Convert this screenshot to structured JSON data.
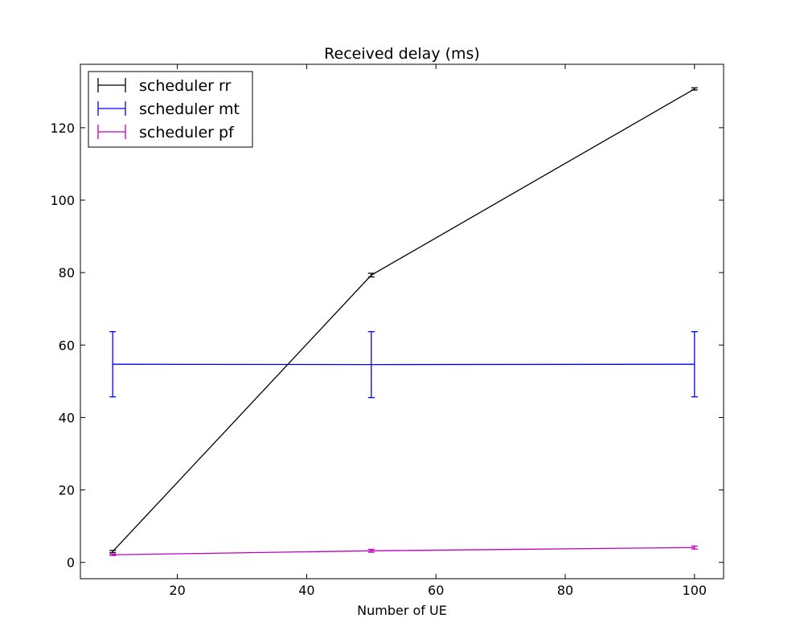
{
  "chart_data": {
    "type": "line",
    "title": "Received delay (ms)",
    "xlabel": "Number of UE",
    "ylabel": "",
    "xlim": [
      5,
      104.5
    ],
    "ylim": [
      -4.5,
      137.5
    ],
    "xticks": [
      20,
      40,
      60,
      80,
      100
    ],
    "yticks": [
      0,
      20,
      40,
      60,
      80,
      100,
      120
    ],
    "x": [
      10,
      50,
      100
    ],
    "grid": false,
    "legend_position": "top-left",
    "series": [
      {
        "name": "scheduler rr",
        "color": "#000000",
        "values": [
          3.0,
          79.3,
          130.7
        ],
        "errors": [
          0.3,
          0.5,
          0.3
        ]
      },
      {
        "name": "scheduler mt",
        "color": "#0000ff",
        "values": [
          54.7,
          54.6,
          54.7
        ],
        "errors": [
          9.0,
          9.1,
          9.0
        ]
      },
      {
        "name": "scheduler pf",
        "color": "#bf00bf",
        "values": [
          2.1,
          3.2,
          4.1
        ],
        "errors": [
          0.2,
          0.4,
          0.4
        ]
      }
    ]
  }
}
